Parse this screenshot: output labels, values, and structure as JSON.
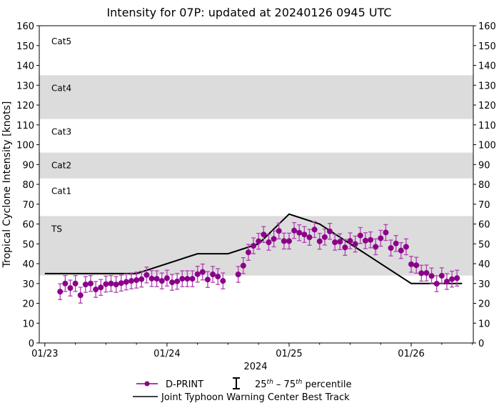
{
  "chart_data": {
    "type": "scatter",
    "title": "Intensity for 07P: updated at 20240126 0945 UTC",
    "ylabel": "Tropical Cyclone Intensity [knots]",
    "xlabel": "2024",
    "ylim": [
      0,
      160
    ],
    "yticks": [
      0,
      10,
      20,
      30,
      40,
      50,
      60,
      70,
      80,
      90,
      100,
      110,
      120,
      130,
      140,
      150,
      160
    ],
    "xticks": [
      {
        "label": "01/23",
        "hours": 0
      },
      {
        "label": "01/24",
        "hours": 24
      },
      {
        "label": "01/25",
        "hours": 48
      },
      {
        "label": "01/26",
        "hours": 72
      }
    ],
    "x_units": "hours since 2024-01-23 00 UTC",
    "xlim_hours": [
      -1.1,
      84.2
    ],
    "grid": false,
    "categories": [
      {
        "label": "TS",
        "min": 34,
        "max": 64,
        "shaded": true
      },
      {
        "label": "Cat1",
        "min": 64,
        "max": 83,
        "shaded": false
      },
      {
        "label": "Cat2",
        "min": 83,
        "max": 96,
        "shaded": true
      },
      {
        "label": "Cat3",
        "min": 96,
        "max": 113,
        "shaded": false
      },
      {
        "label": "Cat4",
        "min": 113,
        "max": 135,
        "shaded": true
      },
      {
        "label": "Cat5",
        "min": 135,
        "max": 160,
        "shaded": false
      }
    ],
    "series": [
      {
        "name": "D-PRINT",
        "color": "#8b008b",
        "errorbar": "25th–75th percentile, approx ±4 kt",
        "errorbar_halfwidth": 4,
        "hours": [
          3,
          4,
          5,
          6,
          7,
          8,
          9,
          10,
          11,
          12,
          13,
          14,
          15,
          16,
          17,
          18,
          19,
          20,
          21,
          22,
          23,
          24,
          25,
          26,
          27,
          28,
          29,
          30,
          31,
          32,
          33,
          34,
          35,
          38,
          39,
          40,
          41,
          42,
          43,
          44,
          45,
          46,
          47,
          48,
          49,
          50,
          51,
          52,
          53,
          54,
          55,
          56,
          57,
          58,
          59,
          60,
          61,
          62,
          63,
          64,
          65,
          66,
          67,
          68,
          69,
          70,
          71,
          72,
          73,
          74,
          75,
          76,
          77,
          78,
          79,
          80,
          81
        ],
        "values": [
          25.9,
          30,
          27.7,
          30,
          24.1,
          29.5,
          30,
          27,
          28,
          29.7,
          30,
          29.5,
          30.2,
          30.8,
          31.3,
          31.7,
          32.2,
          34.3,
          32.5,
          32.4,
          31.3,
          32.7,
          30.6,
          31.1,
          32.4,
          32.4,
          32.4,
          34.7,
          35.8,
          32,
          34.6,
          33.5,
          31.3,
          34.6,
          39,
          45.7,
          49,
          51.3,
          54.7,
          50.8,
          52.5,
          56.5,
          51.4,
          51.4,
          56.7,
          55.6,
          54.7,
          53.3,
          57.2,
          51.3,
          53.4,
          56.3,
          50.8,
          51.1,
          48.2,
          51.5,
          49.9,
          54.2,
          51.6,
          52,
          48.5,
          52.8,
          55.7,
          47.9,
          50.2,
          46.6,
          48.5,
          39.7,
          39.2,
          35.2,
          35.3,
          33.8,
          29.9,
          33.9,
          31,
          32.2,
          32.7
        ]
      },
      {
        "name": "Joint Typhoon Warning Center Best Track",
        "color": "#000000",
        "hours": [
          0,
          18,
          30,
          36,
          42,
          48,
          54,
          72,
          82
        ],
        "values": [
          35,
          35,
          45,
          45,
          50,
          65,
          60,
          30,
          30
        ]
      }
    ],
    "legend": {
      "placement": "bottom",
      "dprint": "D-PRINT",
      "percentile_pre": "25",
      "percentile_sup1": "th",
      "percentile_mid": " – 75",
      "percentile_sup2": "th",
      "percentile_post": " percentile",
      "best_track": "Joint Typhoon Warning Center Best Track"
    },
    "band_color": "#dcdcdc"
  }
}
